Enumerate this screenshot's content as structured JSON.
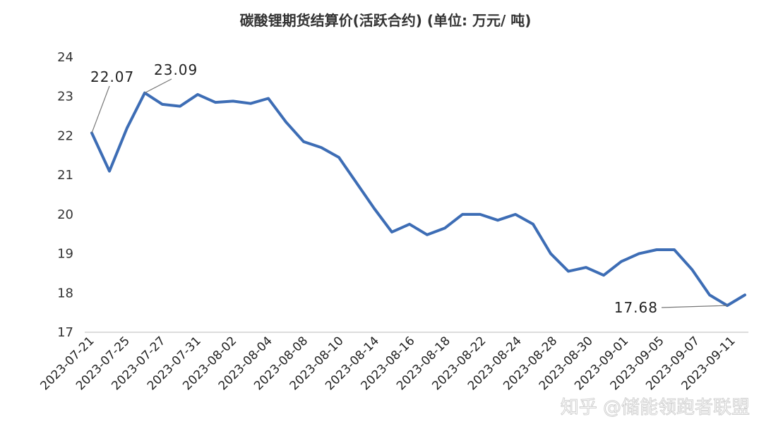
{
  "chart_data": {
    "type": "line",
    "title": "碳酸锂期货结算价(活跃合约)   (单位: 万元/ 吨)",
    "xlabel": "",
    "ylabel": "",
    "ylim": [
      17,
      24
    ],
    "y_ticks": [
      17,
      18,
      19,
      20,
      21,
      22,
      23,
      24
    ],
    "x_tick_labels": [
      "2023-07-21",
      "2023-07-25",
      "2023-07-27",
      "2023-07-31",
      "2023-08-02",
      "2023-08-04",
      "2023-08-08",
      "2023-08-10",
      "2023-08-14",
      "2023-08-16",
      "2023-08-18",
      "2023-08-22",
      "2023-08-24",
      "2023-08-28",
      "2023-08-30",
      "2023-09-01",
      "2023-09-05",
      "2023-09-07",
      "2023-09-11"
    ],
    "grid": false,
    "legend": "none",
    "line_color": "#3d6db5",
    "series": [
      {
        "values": [
          22.07,
          21.1,
          22.2,
          23.09,
          22.8,
          22.75,
          23.05,
          22.85,
          22.88,
          22.82,
          22.95,
          22.35,
          21.85,
          21.7,
          21.45,
          20.8,
          20.15,
          19.55,
          19.75,
          19.48,
          19.65,
          20.0,
          20.0,
          19.85,
          20.0,
          19.75,
          19.0,
          18.55,
          18.65,
          18.45,
          18.8,
          19.0,
          19.1,
          19.1,
          18.6,
          17.95,
          17.68,
          17.95
        ]
      }
    ],
    "annotations": [
      {
        "label": "22.07",
        "point_index": 0
      },
      {
        "label": "23.09",
        "point_index": 3
      },
      {
        "label": "17.68",
        "point_index": 36
      }
    ]
  },
  "watermark": "知乎 @储能领跑者联盟"
}
